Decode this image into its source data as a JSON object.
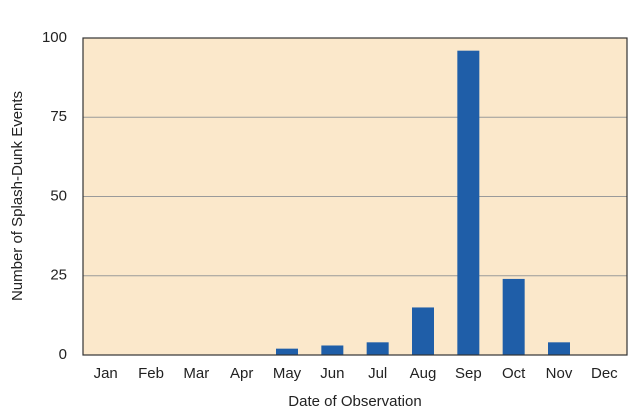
{
  "chart_data": {
    "type": "bar",
    "x_label": "Date of Observation",
    "y_label": "Number of Splash-Dunk Events",
    "categories": [
      "Jan",
      "Feb",
      "Mar",
      "Apr",
      "May",
      "Jun",
      "Jul",
      "Aug",
      "Sep",
      "Oct",
      "Nov",
      "Dec"
    ],
    "values": [
      0,
      0,
      0,
      0,
      2,
      3,
      4,
      15,
      96,
      24,
      4,
      0
    ],
    "color": "#1f5ea8",
    "ylim": [
      0,
      100
    ],
    "yticks": [
      0,
      25,
      50,
      75,
      100
    ],
    "grid": true
  }
}
